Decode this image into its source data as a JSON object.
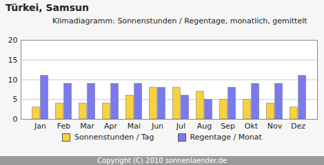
{
  "chart_data": {
    "type": "bar",
    "title": "Türkei, Samsun",
    "subtitle": "Klimadiagramm: Sonnenstunden / Regentage, monatlich, gemittelt",
    "caption": "Copyright (C) 2010 sonnenlaender.de",
    "categories": [
      "Jan",
      "Feb",
      "Mar",
      "Apr",
      "Mai",
      "Jun",
      "Jul",
      "Aug",
      "Sep",
      "Okt",
      "Nov",
      "Dez"
    ],
    "series": [
      {
        "name": "Sonnenstunden / Tag",
        "color": "#f7d23c",
        "values": [
          3,
          4,
          4,
          4,
          6,
          8,
          8,
          7,
          5,
          5,
          4,
          3
        ]
      },
      {
        "name": "Regentage / Monat",
        "color": "#7a7aee",
        "values": [
          11,
          9,
          9,
          9,
          9,
          8,
          6,
          5,
          8,
          9,
          9,
          11
        ]
      }
    ],
    "ylim": [
      0,
      20
    ],
    "yticks": [
      0,
      5,
      10,
      15,
      20
    ],
    "grid": true,
    "legend": "bottom"
  }
}
